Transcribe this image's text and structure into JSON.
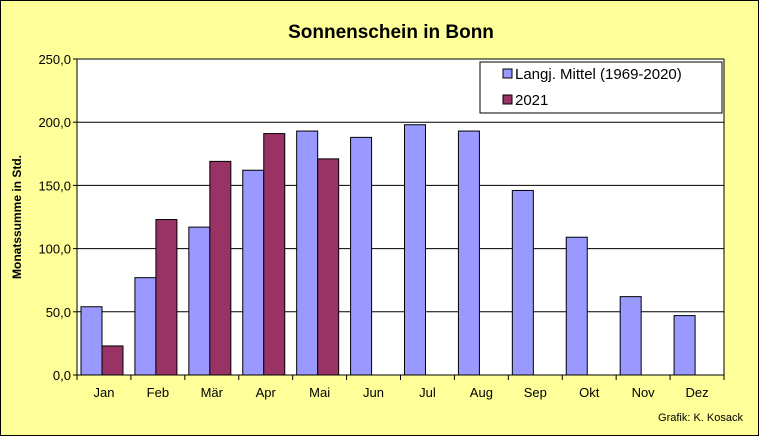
{
  "chart_data": {
    "type": "bar",
    "title": "Sonnenschein in Bonn",
    "ylabel": "Monatssumme in Std.",
    "xlabel": "",
    "categories": [
      "Jan",
      "Feb",
      "Mär",
      "Apr",
      "Mai",
      "Jun",
      "Jul",
      "Aug",
      "Sep",
      "Okt",
      "Nov",
      "Dez"
    ],
    "ylim": [
      0,
      250
    ],
    "yticks": [
      "0,0",
      "50,0",
      "100,0",
      "150,0",
      "200,0",
      "250,0"
    ],
    "grid": true,
    "legend_position": "top-right",
    "series": [
      {
        "name": "Langj. Mittel (1969-2020)",
        "color": "#9999ff",
        "values": [
          54,
          77,
          117,
          162,
          193,
          188,
          198,
          193,
          146,
          109,
          62,
          47
        ]
      },
      {
        "name": "2021",
        "color": "#993366",
        "values": [
          23,
          123,
          169,
          191,
          171,
          null,
          null,
          null,
          null,
          null,
          null,
          null
        ]
      }
    ],
    "credit": "Grafik:  K. Kosack"
  },
  "colors": {
    "background": "#ffff99",
    "plot_area": "#ffffff"
  }
}
